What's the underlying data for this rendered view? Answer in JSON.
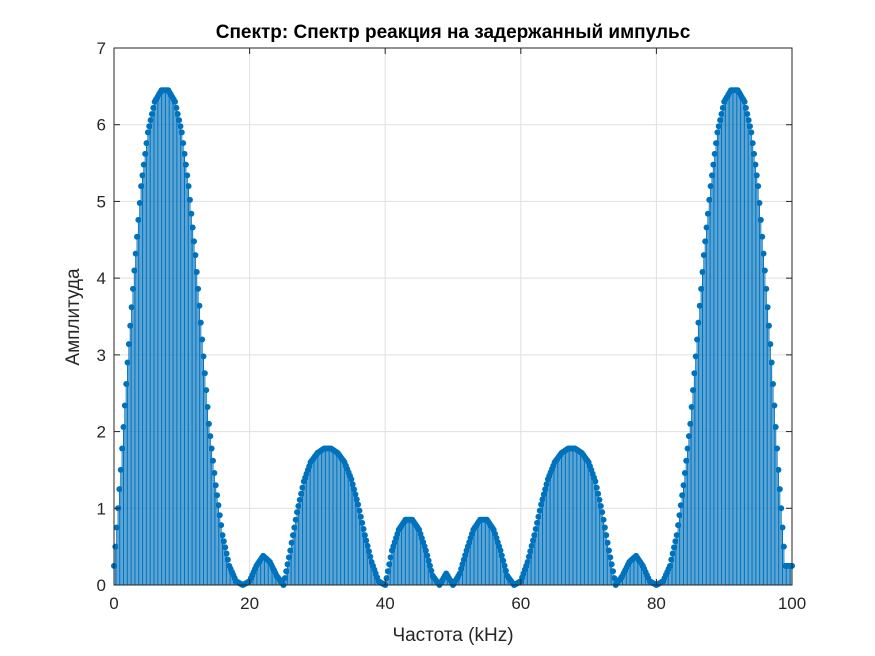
{
  "chart_data": {
    "type": "stem",
    "title": "Спектр: Спектр реакция на задержанный импульс",
    "xlabel": "Частота (kHz)",
    "ylabel": "Амплитуда",
    "xlim": [
      0,
      100
    ],
    "ylim": [
      0,
      7
    ],
    "xticks": [
      "0",
      "20",
      "40",
      "60",
      "80",
      "100"
    ],
    "yticks": [
      "0",
      "1",
      "2",
      "3",
      "4",
      "5",
      "6",
      "7"
    ],
    "grid": true,
    "series_color": "#0072BD",
    "series": [
      {
        "x": [
          0,
          1,
          2,
          3,
          4,
          5,
          6,
          7,
          8,
          9,
          10,
          11,
          12,
          13,
          14,
          15,
          16,
          17,
          18,
          19,
          20,
          21,
          22,
          23,
          24,
          25,
          26,
          27,
          28,
          29,
          30,
          31,
          32,
          33,
          34,
          35,
          36,
          37,
          38,
          39,
          40,
          41,
          42,
          43,
          44,
          45,
          46,
          47,
          48,
          49,
          50,
          51,
          52,
          53,
          54,
          55,
          56,
          57,
          58,
          59,
          60,
          61,
          62,
          63,
          64,
          65,
          66,
          67,
          68,
          69,
          70,
          71,
          72,
          73,
          74,
          75,
          76,
          77,
          78,
          79,
          80,
          81,
          82,
          83,
          84,
          85,
          86,
          87,
          88,
          89,
          90,
          91,
          92,
          93,
          94,
          95,
          96,
          97,
          98,
          99,
          100
        ],
        "values": [
          0.25,
          1.5,
          2.9,
          4.1,
          5.2,
          5.9,
          6.3,
          6.45,
          6.45,
          6.3,
          5.9,
          5.2,
          4.3,
          3.2,
          2.1,
          1.3,
          0.65,
          0.25,
          0.05,
          0.0,
          0.05,
          0.25,
          0.38,
          0.3,
          0.12,
          0.0,
          0.45,
          0.95,
          1.35,
          1.6,
          1.72,
          1.78,
          1.78,
          1.72,
          1.6,
          1.38,
          1.05,
          0.65,
          0.3,
          0.05,
          0.0,
          0.45,
          0.72,
          0.85,
          0.85,
          0.72,
          0.45,
          0.12,
          0.0,
          0.15,
          0.0,
          0.15,
          0.45,
          0.72,
          0.85,
          0.85,
          0.72,
          0.45,
          0.12,
          0.0,
          0.05,
          0.3,
          0.65,
          1.05,
          1.38,
          1.6,
          1.72,
          1.78,
          1.78,
          1.72,
          1.6,
          1.35,
          0.95,
          0.45,
          0.0,
          0.12,
          0.3,
          0.38,
          0.25,
          0.05,
          0.0,
          0.05,
          0.25,
          0.65,
          1.3,
          2.1,
          3.2,
          4.3,
          5.2,
          5.9,
          6.3,
          6.45,
          6.45,
          6.3,
          5.9,
          5.2,
          4.1,
          2.9,
          1.5,
          0.25,
          0.25
        ]
      }
    ]
  }
}
